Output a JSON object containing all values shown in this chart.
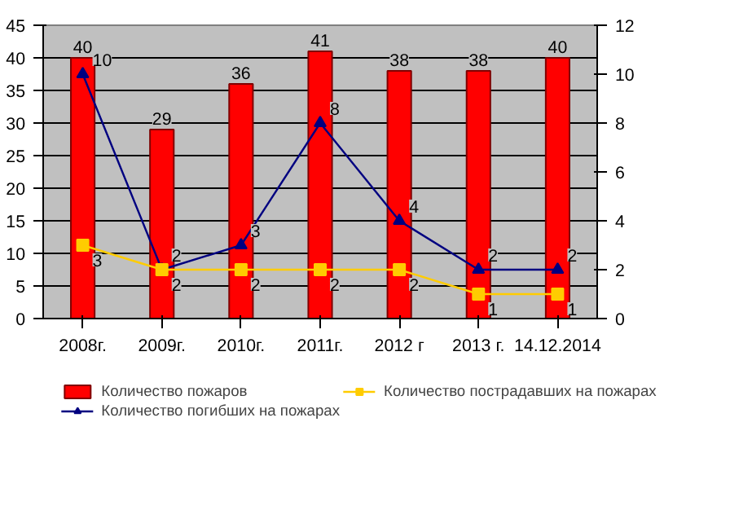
{
  "chart_data": {
    "type": "bar",
    "categories": [
      "2008г.",
      "2009г.",
      "2010г.",
      "2011г.",
      "2012 г",
      "2013 г.",
      "14.12.2014"
    ],
    "series": [
      {
        "name": "Количество пожаров",
        "color": "#ff0000",
        "values": [
          40,
          29,
          36,
          41,
          38,
          38,
          40
        ]
      },
      {
        "name": "Количество погибших на пожарах",
        "type": "line",
        "axis": "y2",
        "color": "#000080",
        "marker": "triangle",
        "values": [
          10,
          2,
          3,
          8,
          4,
          2,
          2
        ]
      },
      {
        "name": "Количество пострадавших на пожарах",
        "type": "line",
        "axis": "y2",
        "color": "#ffcc00",
        "marker": "square",
        "values": [
          3,
          2,
          2,
          2,
          2,
          1,
          1
        ]
      }
    ],
    "ylim": [
      0,
      45
    ],
    "yticks": [
      0,
      5,
      10,
      15,
      20,
      25,
      30,
      35,
      40,
      45
    ],
    "y2lim": [
      0,
      12
    ],
    "y2ticks": [
      0,
      2,
      4,
      6,
      8,
      10,
      12
    ],
    "grid": "y",
    "legend": "bottom",
    "data_labels": true
  }
}
